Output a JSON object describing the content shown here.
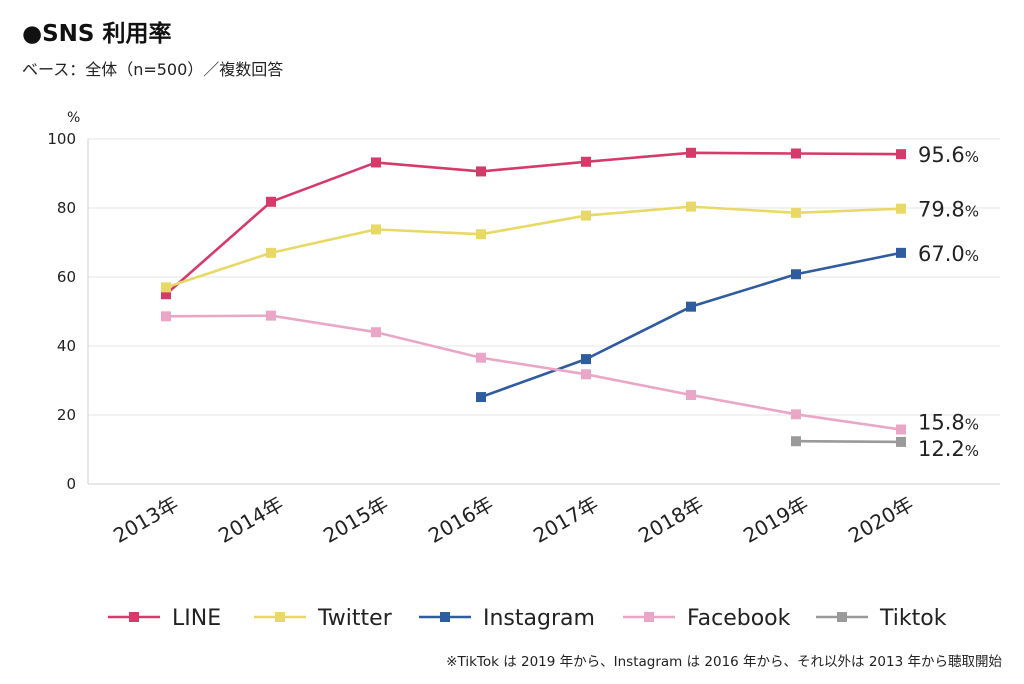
{
  "title": "●SNS 利用率",
  "subtitle": "ベース：全体（n=500）／複数回答",
  "footnote": "※TikTok は 2019 年から、Instagram は 2016 年から、それ以外は 2013 年から聴取開始",
  "chart_data": {
    "type": "line",
    "ylabel": "%",
    "ylim": [
      0,
      100
    ],
    "yticks": [
      0,
      20,
      40,
      60,
      80,
      100
    ],
    "grid": true,
    "legend_position": "bottom",
    "categories": [
      "2013年",
      "2014年",
      "2015年",
      "2016年",
      "2017年",
      "2018年",
      "2019年",
      "2020年"
    ],
    "series": [
      {
        "name": "LINE",
        "color": "#d63a6a",
        "values": [
          55.0,
          81.8,
          93.2,
          90.6,
          93.4,
          96.0,
          95.8,
          95.6
        ],
        "end_label": "95.6",
        "end_unit": "%"
      },
      {
        "name": "Twitter",
        "color": "#e8d966",
        "values": [
          57.0,
          67.0,
          73.8,
          72.4,
          77.8,
          80.4,
          78.6,
          79.8
        ],
        "end_label": "79.8",
        "end_unit": "%"
      },
      {
        "name": "Instagram",
        "color": "#2e5c9e",
        "values": [
          null,
          null,
          null,
          25.2,
          36.2,
          51.4,
          60.8,
          67.0
        ],
        "end_label": "67.0",
        "end_unit": "%"
      },
      {
        "name": "Facebook",
        "color": "#eaa6c6",
        "values": [
          48.6,
          48.8,
          44.0,
          36.6,
          31.8,
          25.8,
          20.2,
          15.8
        ],
        "end_label": "15.8",
        "end_unit": "%"
      },
      {
        "name": "Tiktok",
        "color": "#9a9a9a",
        "values": [
          null,
          null,
          null,
          null,
          null,
          null,
          12.4,
          12.2
        ],
        "end_label": "12.2",
        "end_unit": "%"
      }
    ]
  }
}
